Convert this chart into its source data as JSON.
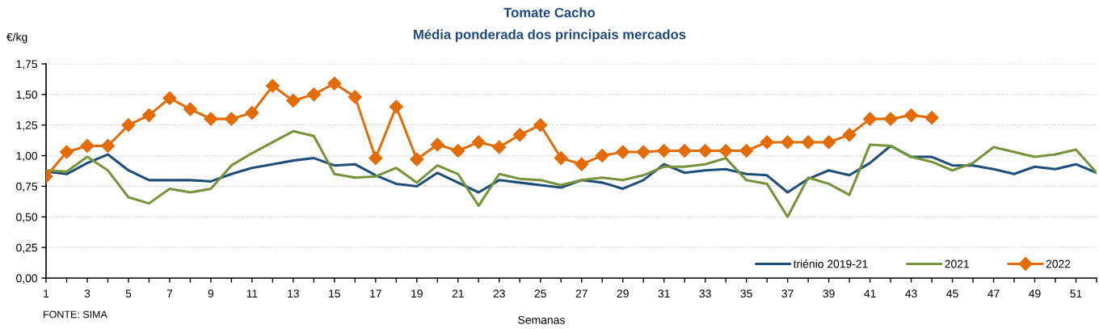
{
  "chart_data": {
    "type": "line",
    "title": "Tomate Cacho",
    "subtitle": "Média ponderada dos principais mercados",
    "ylabel": "€/kg",
    "xlabel": "Semanas",
    "annotations": [
      "FONTE: SIMA"
    ],
    "x": [
      1,
      2,
      3,
      4,
      5,
      6,
      7,
      8,
      9,
      10,
      11,
      12,
      13,
      14,
      15,
      16,
      17,
      18,
      19,
      20,
      21,
      22,
      23,
      24,
      25,
      26,
      27,
      28,
      29,
      30,
      31,
      32,
      33,
      34,
      35,
      36,
      37,
      38,
      39,
      40,
      41,
      42,
      43,
      44,
      45,
      46,
      47,
      48,
      49,
      50,
      51,
      52
    ],
    "series": [
      {
        "name": "triénio 2019-21",
        "color": "#1f4e79",
        "values": [
          0.87,
          0.85,
          0.94,
          1.01,
          0.88,
          0.8,
          0.8,
          0.8,
          0.79,
          0.85,
          0.9,
          0.93,
          0.96,
          0.98,
          0.92,
          0.93,
          0.84,
          0.77,
          0.75,
          0.86,
          0.78,
          0.7,
          0.8,
          0.78,
          0.76,
          0.74,
          0.8,
          0.78,
          0.73,
          0.8,
          0.93,
          0.86,
          0.88,
          0.89,
          0.85,
          0.84,
          0.7,
          0.81,
          0.88,
          0.84,
          0.94,
          1.08,
          0.99,
          0.99,
          0.92,
          0.92,
          0.89,
          0.85,
          0.91,
          0.89,
          0.93,
          0.86
        ]
      },
      {
        "name": "2021",
        "color": "#77933c",
        "values": [
          0.88,
          0.87,
          0.99,
          0.88,
          0.66,
          0.61,
          0.73,
          0.7,
          0.73,
          0.92,
          1.02,
          1.11,
          1.2,
          1.16,
          0.85,
          0.82,
          0.83,
          0.9,
          0.78,
          0.92,
          0.85,
          0.59,
          0.85,
          0.81,
          0.8,
          0.76,
          0.8,
          0.82,
          0.8,
          0.84,
          0.91,
          0.91,
          0.93,
          0.98,
          0.8,
          0.77,
          0.5,
          0.82,
          0.77,
          0.68,
          1.09,
          1.08,
          0.99,
          0.95,
          0.88,
          0.94,
          1.07,
          1.03,
          0.99,
          1.01,
          1.05,
          0.86
        ]
      },
      {
        "name": "2022",
        "color": "#e36c09",
        "marker": "diamond",
        "values": [
          0.83,
          1.03,
          1.08,
          1.08,
          1.25,
          1.33,
          1.47,
          1.38,
          1.3,
          1.3,
          1.35,
          1.57,
          1.45,
          1.5,
          1.59,
          1.48,
          0.98,
          1.4,
          0.97,
          1.09,
          1.04,
          1.11,
          1.07,
          1.17,
          1.25,
          0.98,
          0.93,
          1.0,
          1.03,
          1.03,
          1.04,
          1.04,
          1.04,
          1.04,
          1.04,
          1.11,
          1.11,
          1.11,
          1.11,
          1.17,
          1.3,
          1.3,
          1.33,
          1.31,
          null,
          null,
          null,
          null,
          null,
          null,
          null,
          null
        ]
      }
    ],
    "xlim": [
      1,
      52
    ],
    "xticks": [
      1,
      {
        "value": 2,
        "label": null
      },
      3,
      {
        "value": 4,
        "label": null
      },
      5,
      {
        "value": 6,
        "label": null
      },
      7,
      {
        "value": 8,
        "label": null
      },
      9,
      {
        "value": 10,
        "label": null
      },
      11,
      {
        "value": 12,
        "label": null
      },
      13,
      {
        "value": 14,
        "label": null
      },
      15,
      {
        "value": 16,
        "label": null
      },
      17,
      {
        "value": 18,
        "label": null
      },
      19,
      {
        "value": 20,
        "label": null
      },
      21,
      {
        "value": 22,
        "label": null
      },
      23,
      {
        "value": 24,
        "label": null
      },
      25,
      {
        "value": 26,
        "label": null
      },
      27,
      {
        "value": 28,
        "label": null
      },
      29,
      {
        "value": 30,
        "label": null
      },
      31,
      {
        "value": 32,
        "label": null
      },
      33,
      {
        "value": 34,
        "label": null
      },
      35,
      {
        "value": 36,
        "label": null
      },
      37,
      {
        "value": 38,
        "label": null
      },
      39,
      {
        "value": 40,
        "label": null
      },
      41,
      {
        "value": 42,
        "label": null
      },
      43,
      {
        "value": 44,
        "label": null
      },
      45,
      {
        "value": 46,
        "label": null
      },
      47,
      {
        "value": 48,
        "label": null
      },
      49,
      {
        "value": 50,
        "label": null
      },
      51,
      {
        "value": 52,
        "label": null
      }
    ],
    "ylim": [
      0,
      1.75
    ],
    "yticks": [
      {
        "value": 0,
        "label": "0,00"
      },
      {
        "value": 0.25,
        "label": "0,25"
      },
      {
        "value": 0.5,
        "label": "0,50"
      },
      {
        "value": 0.75,
        "label": "0,75"
      },
      {
        "value": 1,
        "label": "1,00"
      },
      {
        "value": 1.25,
        "label": "1,25"
      },
      {
        "value": 1.5,
        "label": "1,50"
      },
      {
        "value": 1.75,
        "label": "1,75"
      }
    ],
    "grid": "y",
    "legend": "bottom right",
    "line_style": "solid"
  }
}
